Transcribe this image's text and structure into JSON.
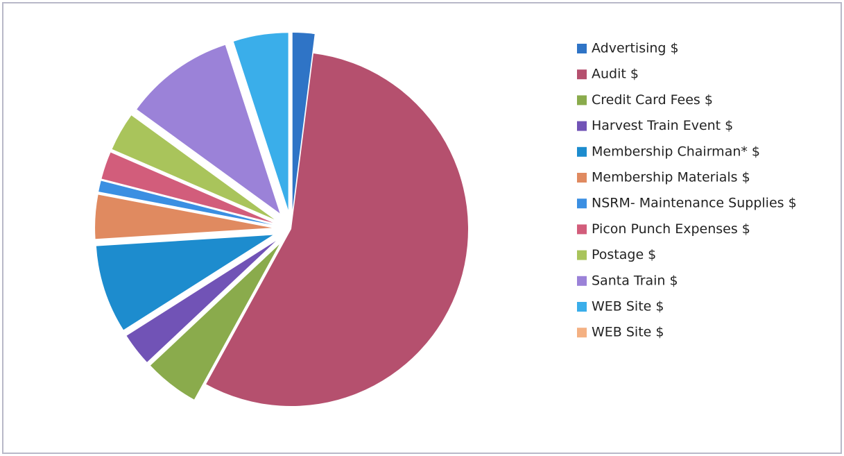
{
  "chart_data": {
    "type": "pie",
    "categories": [
      "Advertising $",
      "Audit $",
      "Credit Card Fees $",
      "Harvest Train Event $",
      "Membership Chairman* $",
      "Membership Materials $",
      "NSRM- Maintenance Supplies $",
      "Picon Punch Expenses $",
      "Postage $",
      "Santa Train $",
      "WEB Site $",
      "WEB Site $"
    ],
    "values": [
      2,
      56,
      5,
      3,
      8,
      4,
      1,
      2.5,
      3.5,
      10,
      5,
      0
    ],
    "colors": [
      "#2f74c6",
      "#b5506e",
      "#8aab4c",
      "#7153b6",
      "#1d8cce",
      "#e08a60",
      "#3b8fe2",
      "#d25d7b",
      "#a9c45b",
      "#9b82d8",
      "#3aaeea",
      "#f4b183"
    ],
    "legend": "right"
  }
}
